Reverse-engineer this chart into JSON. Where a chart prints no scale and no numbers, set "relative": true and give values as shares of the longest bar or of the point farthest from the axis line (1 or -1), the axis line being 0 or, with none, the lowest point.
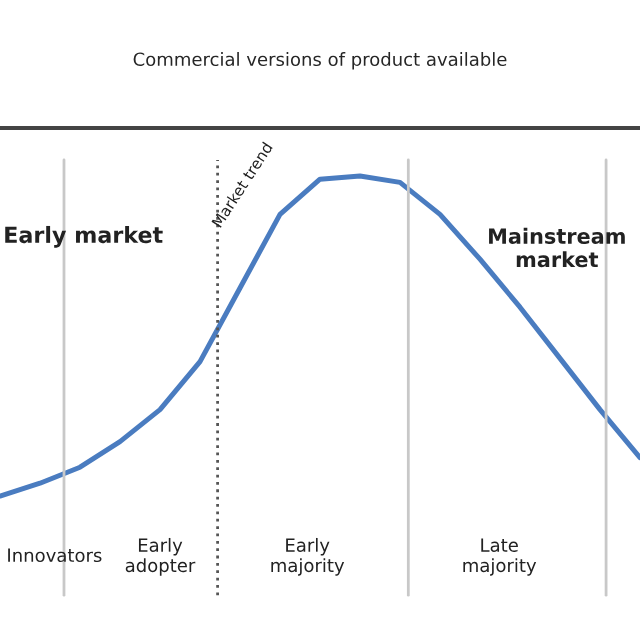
{
  "chart_data": {
    "type": "line",
    "relative": true,
    "title": "Commercial versions of product available",
    "categories": [
      null,
      null,
      null,
      null,
      null,
      null,
      null,
      null,
      null,
      null,
      null,
      null,
      null,
      null,
      null,
      null,
      null
    ],
    "series": [
      {
        "color": "#4a7cc0",
        "values": [
          0,
          0.04,
          0.09,
          0.17,
          0.27,
          0.42,
          0.65,
          0.88,
          0.99,
          1,
          0.98,
          0.88,
          0.74,
          0.59,
          0.43,
          0.27,
          0.12
        ]
      }
    ],
    "annotations": [
      "Early market",
      "Mainstream market",
      "Market trend",
      "Innovators",
      "Early adopter",
      "Early majority",
      "Late majority"
    ],
    "marker": "none",
    "line_style": "solid",
    "legend": false
  }
}
